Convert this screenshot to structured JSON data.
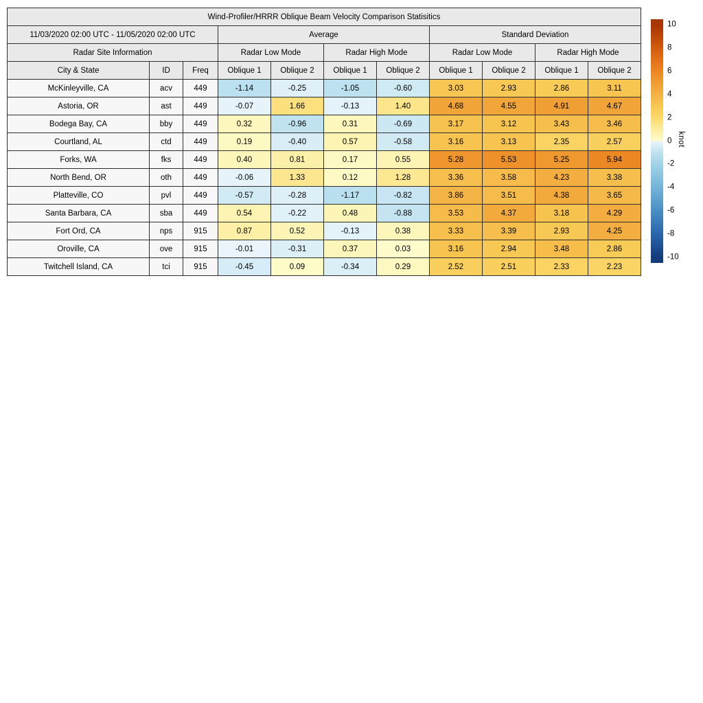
{
  "title": "Wind-Profiler/HRRR Oblique Beam Velocity Comparison Statisitics",
  "header": {
    "date_range": "11/03/2020 02:00 UTC - 11/05/2020 02:00 UTC",
    "group_average": "Average",
    "group_std": "Standard Deviation",
    "site_info": "Radar Site Information",
    "mode_headers": [
      "Radar Low Mode",
      "Radar High Mode",
      "Radar Low Mode",
      "Radar High Mode"
    ],
    "col_city": "City & State",
    "col_id": "ID",
    "col_freq": "Freq",
    "oblique_headers": [
      "Oblique 1",
      "Oblique 2",
      "Oblique 1",
      "Oblique 2",
      "Oblique 1",
      "Oblique 2",
      "Oblique 1",
      "Oblique 2"
    ]
  },
  "colorbar": {
    "label": "knot",
    "ticks": [
      10,
      8,
      6,
      4,
      2,
      0,
      -2,
      -4,
      -6,
      -8,
      -10
    ],
    "vmin": -10.5,
    "vmax": 10.5
  },
  "colormap": {
    "positive": [
      "#fdfccb",
      "#fdeda1",
      "#fbd96b",
      "#f8c752",
      "#f4b244",
      "#f09d32",
      "#ec8723",
      "#e17119",
      "#d25c0e",
      "#bd4806",
      "#a63603"
    ],
    "negative": [
      "#e9f5fa",
      "#bfe2f0",
      "#a2d3e8",
      "#8ac3e0",
      "#73b4d8",
      "#5fa2ce",
      "#4a8fc3",
      "#3a7bb8",
      "#2a66ad",
      "#1e5196",
      "#143c7a"
    ]
  },
  "chart_data": {
    "type": "heatmap",
    "title": "Wind-Profiler/HRRR Oblique Beam Velocity Comparison Statisitics",
    "period": "11/03/2020 02:00 UTC - 11/05/2020 02:00 UTC",
    "colorbar_label": "knot",
    "color_range": [
      -10,
      10
    ],
    "column_groups": [
      "Average / Radar Low Mode",
      "Average / Radar High Mode",
      "Standard Deviation / Radar Low Mode",
      "Standard Deviation / Radar High Mode"
    ],
    "columns": [
      "Avg Low Oblique 1",
      "Avg Low Oblique 2",
      "Avg High Oblique 1",
      "Avg High Oblique 2",
      "Std Low Oblique 1",
      "Std Low Oblique 2",
      "Std High Oblique 1",
      "Std High Oblique 2"
    ],
    "rows": [
      {
        "city": "McKinleyville, CA",
        "id": "acv",
        "freq": "449",
        "values": [
          -1.14,
          -0.25,
          -1.05,
          -0.6,
          3.03,
          2.93,
          2.86,
          3.11
        ]
      },
      {
        "city": "Astoria, OR",
        "id": "ast",
        "freq": "449",
        "values": [
          -0.07,
          1.66,
          -0.13,
          1.4,
          4.68,
          4.55,
          4.91,
          4.67
        ]
      },
      {
        "city": "Bodega Bay, CA",
        "id": "bby",
        "freq": "449",
        "values": [
          0.32,
          -0.96,
          0.31,
          -0.69,
          3.17,
          3.12,
          3.43,
          3.46
        ]
      },
      {
        "city": "Courtland, AL",
        "id": "ctd",
        "freq": "449",
        "values": [
          0.19,
          -0.4,
          0.57,
          -0.58,
          3.16,
          3.13,
          2.35,
          2.57
        ]
      },
      {
        "city": "Forks, WA",
        "id": "fks",
        "freq": "449",
        "values": [
          0.4,
          0.81,
          0.17,
          0.55,
          5.28,
          5.53,
          5.25,
          5.94
        ]
      },
      {
        "city": "North Bend, OR",
        "id": "oth",
        "freq": "449",
        "values": [
          -0.06,
          1.33,
          0.12,
          1.28,
          3.36,
          3.58,
          4.23,
          3.38
        ]
      },
      {
        "city": "Platteville, CO",
        "id": "pvl",
        "freq": "449",
        "values": [
          -0.57,
          -0.28,
          -1.17,
          -0.82,
          3.86,
          3.51,
          4.38,
          3.65
        ]
      },
      {
        "city": "Santa Barbara, CA",
        "id": "sba",
        "freq": "449",
        "values": [
          0.54,
          -0.22,
          0.48,
          -0.88,
          3.53,
          4.37,
          3.18,
          4.29
        ]
      },
      {
        "city": "Fort Ord, CA",
        "id": "nps",
        "freq": "915",
        "values": [
          0.87,
          0.52,
          -0.13,
          0.38,
          3.33,
          3.39,
          2.93,
          4.25
        ]
      },
      {
        "city": "Oroville, CA",
        "id": "ove",
        "freq": "915",
        "values": [
          -0.01,
          -0.31,
          0.37,
          0.03,
          3.16,
          2.94,
          3.48,
          2.86
        ]
      },
      {
        "city": "Twitchell Island, CA",
        "id": "tci",
        "freq": "915",
        "values": [
          -0.45,
          0.09,
          -0.34,
          0.29,
          2.52,
          2.51,
          2.33,
          2.23
        ]
      }
    ]
  }
}
